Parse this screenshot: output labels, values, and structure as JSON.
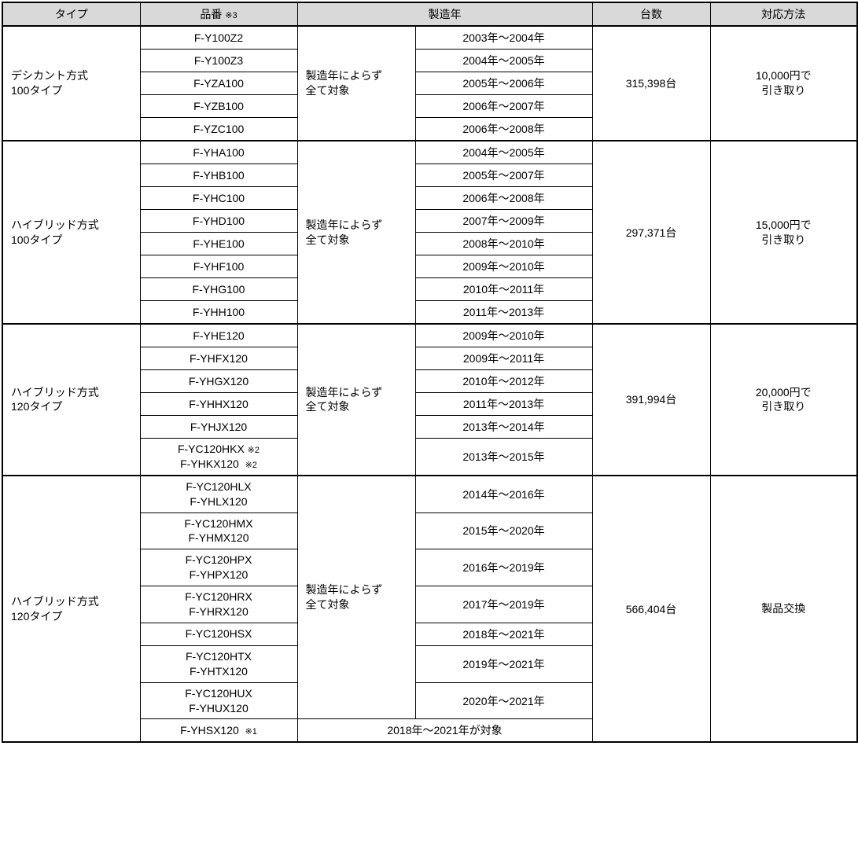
{
  "headers": {
    "type": "タイプ",
    "model": "品番",
    "model_ref": "※3",
    "year": "製造年",
    "qty": "台数",
    "action": "対応方法"
  },
  "groups": [
    {
      "type_line1": "デシカント方式",
      "type_line2": "100タイプ",
      "note_line1": "製造年によらず",
      "note_line2": "全て対象",
      "qty": "315,398台",
      "action_line1": "10,000円で",
      "action_line2": "引き取り",
      "rows": [
        {
          "model": "F-Y100Z2",
          "year": "2003年～2004年"
        },
        {
          "model": "F-Y100Z3",
          "year": "2004年～2005年"
        },
        {
          "model": "F-YZA100",
          "year": "2005年～2006年"
        },
        {
          "model": "F-YZB100",
          "year": "2006年～2007年"
        },
        {
          "model": "F-YZC100",
          "year": "2006年～2008年"
        }
      ]
    },
    {
      "type_line1": "ハイブリッド方式",
      "type_line2": "100タイプ",
      "note_line1": "製造年によらず",
      "note_line2": "全て対象",
      "qty": "297,371台",
      "action_line1": "15,000円で",
      "action_line2": "引き取り",
      "rows": [
        {
          "model": "F-YHA100",
          "year": "2004年～2005年"
        },
        {
          "model": "F-YHB100",
          "year": "2005年～2007年"
        },
        {
          "model": "F-YHC100",
          "year": "2006年～2008年"
        },
        {
          "model": "F-YHD100",
          "year": "2007年～2009年"
        },
        {
          "model": "F-YHE100",
          "year": "2008年～2010年"
        },
        {
          "model": "F-YHF100",
          "year": "2009年～2010年"
        },
        {
          "model": "F-YHG100",
          "year": "2010年～2011年"
        },
        {
          "model": "F-YHH100",
          "year": "2011年～2013年"
        }
      ]
    },
    {
      "type_line1": "ハイブリッド方式",
      "type_line2": "120タイプ",
      "note_line1": "製造年によらず",
      "note_line2": "全て対象",
      "qty": "391,994台",
      "action_line1": "20,000円で",
      "action_line2": "引き取り",
      "rows": [
        {
          "model": "F-YHE120",
          "year": "2009年～2010年"
        },
        {
          "model": "F-YHFX120",
          "year": "2009年～2011年"
        },
        {
          "model": "F-YHGX120",
          "year": "2010年～2012年"
        },
        {
          "model": "F-YHHX120",
          "year": "2011年～2013年"
        },
        {
          "model": "F-YHJX120",
          "year": "2013年～2014年"
        }
      ],
      "last_row": {
        "model_line1": "F-YC120HKX",
        "model_line2": "F-YHKX120",
        "ref": "※2",
        "year": "2013年～2015年"
      }
    },
    {
      "type_line1": "ハイブリッド方式",
      "type_line2": "120タイプ",
      "note_line1": "製造年によらず",
      "note_line2": "全て対象",
      "qty": "566,404台",
      "action_line1": "製品交換",
      "rows": [
        {
          "model_line1": "F-YC120HLX",
          "model_line2": "F-YHLX120",
          "year": "2014年～2016年"
        },
        {
          "model_line1": "F-YC120HMX",
          "model_line2": "F-YHMX120",
          "year": "2015年～2020年"
        },
        {
          "model_line1": "F-YC120HPX",
          "model_line2": "F-YHPX120",
          "year": "2016年～2019年"
        },
        {
          "model_line1": "F-YC120HRX",
          "model_line2": "F-YHRX120",
          "year": "2017年～2019年"
        },
        {
          "model_line1": "F-YC120HSX",
          "year": "2018年～2021年"
        },
        {
          "model_line1": "F-YC120HTX",
          "model_line2": "F-YHTX120",
          "year": "2019年～2021年"
        },
        {
          "model_line1": "F-YC120HUX",
          "model_line2": "F-YHUX120",
          "year": "2020年～2021年"
        }
      ],
      "last_row": {
        "model": "F-YHSX120",
        "ref": "※1",
        "year_span_text": "2018年～2021年が対象"
      }
    }
  ]
}
